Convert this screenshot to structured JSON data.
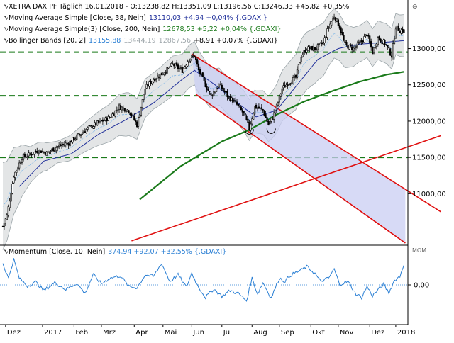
{
  "colors": {
    "price": "#000000",
    "ma38": "#1f2f9a",
    "ma200": "#1a7a1a",
    "bb": "#9aa4a8",
    "bb_fill": "#e3e5e6",
    "support": "#1a7a1a",
    "channel": "#e01010",
    "channel_fill": "#c9cdf3",
    "momentum": "#2a7fd4",
    "zero": "#2a7fd4",
    "grid": "#000000"
  },
  "header": {
    "line1": "XETRA DAX PF Täglich  16.01.2018 - O:13238,82  H:13351,09  L:13196,56  C:13246,33  +45,82  +0,35%",
    "ma38_prefix": "Moving Average Simple [Close, 38, Nein]",
    "ma38_values": "13110,03 +4,94 +0,04% {.GDAXI}",
    "ma200_prefix": "Moving Average Simple(3) [Close, 200, Nein]",
    "ma200_values": "12678,53 +5,22 +0,04% {.GDAXI}",
    "bb_prefix": "Bollinger Bands [20, 2]",
    "bb_v1": "13155,88",
    "bb_v2": "13444,19",
    "bb_v3": "12867,56",
    "bb_tail": "+8,91 +0,07% {.GDAXI}",
    "mom_prefix": "Momentum [Close, 10, Nein]",
    "mom_values": "374,94 +92,07 +32,55% {.GDAXI}",
    "mom_scale_label": "MOM"
  },
  "chart_data": [
    {
      "type": "candlestick",
      "title": "XETRA DAX PF Täglich",
      "ylim": [
        10300,
        13650
      ],
      "yticks": [
        11000,
        11500,
        12000,
        12500,
        13000
      ],
      "ytick_labels": [
        "11000,00",
        "11500,00",
        "12000,00",
        "12500,00",
        "13000,00"
      ],
      "x_labels": [
        "Dez",
        "2017",
        "Feb",
        "Mrz",
        "Apr",
        "Mai",
        "Jun",
        "Jul",
        "Aug",
        "Sep",
        "Okt",
        "Nov",
        "Dez",
        "2018"
      ],
      "x_label_index": [
        2,
        29,
        52,
        72,
        96,
        117,
        138,
        160,
        182,
        202,
        225,
        245,
        268,
        287
      ],
      "n_days": 300,
      "price_anchors": [
        [
          0,
          10550
        ],
        [
          3,
          10700
        ],
        [
          8,
          11250
        ],
        [
          14,
          11500
        ],
        [
          20,
          11540
        ],
        [
          26,
          11600
        ],
        [
          32,
          11560
        ],
        [
          40,
          11650
        ],
        [
          48,
          11700
        ],
        [
          55,
          11800
        ],
        [
          62,
          11900
        ],
        [
          70,
          11980
        ],
        [
          78,
          12050
        ],
        [
          85,
          12200
        ],
        [
          92,
          12150
        ],
        [
          98,
          11950
        ],
        [
          104,
          12450
        ],
        [
          110,
          12580
        ],
        [
          116,
          12650
        ],
        [
          124,
          12780
        ],
        [
          131,
          12700
        ],
        [
          136,
          12860
        ],
        [
          140,
          12900
        ],
        [
          143,
          12700
        ],
        [
          148,
          12500
        ],
        [
          152,
          12350
        ],
        [
          158,
          12500
        ],
        [
          164,
          12350
        ],
        [
          170,
          12250
        ],
        [
          176,
          12100
        ],
        [
          180,
          11900
        ],
        [
          184,
          12200
        ],
        [
          190,
          12150
        ],
        [
          194,
          11950
        ],
        [
          197,
          12050
        ],
        [
          200,
          12200
        ],
        [
          204,
          12450
        ],
        [
          210,
          12550
        ],
        [
          214,
          12600
        ],
        [
          218,
          12900
        ],
        [
          222,
          13000
        ],
        [
          228,
          13000
        ],
        [
          234,
          13080
        ],
        [
          238,
          13300
        ],
        [
          242,
          13450
        ],
        [
          246,
          13300
        ],
        [
          250,
          13050
        ],
        [
          256,
          13000
        ],
        [
          262,
          13100
        ],
        [
          266,
          13200
        ],
        [
          270,
          12950
        ],
        [
          274,
          13150
        ],
        [
          280,
          13050
        ],
        [
          284,
          12900
        ],
        [
          287,
          13300
        ],
        [
          290,
          13250
        ],
        [
          293,
          13246
        ]
      ],
      "ma38_anchors": [
        [
          12,
          11100
        ],
        [
          30,
          11450
        ],
        [
          50,
          11550
        ],
        [
          70,
          11820
        ],
        [
          90,
          12020
        ],
        [
          110,
          12250
        ],
        [
          130,
          12560
        ],
        [
          140,
          12700
        ],
        [
          155,
          12500
        ],
        [
          170,
          12270
        ],
        [
          185,
          12060
        ],
        [
          200,
          12150
        ],
        [
          215,
          12500
        ],
        [
          230,
          12850
        ],
        [
          245,
          13000
        ],
        [
          260,
          13060
        ],
        [
          275,
          13080
        ],
        [
          293,
          13110
        ]
      ],
      "ma200_anchors": [
        [
          100,
          10920
        ],
        [
          130,
          11380
        ],
        [
          160,
          11720
        ],
        [
          180,
          11880
        ],
        [
          200,
          12090
        ],
        [
          220,
          12270
        ],
        [
          240,
          12410
        ],
        [
          260,
          12540
        ],
        [
          280,
          12640
        ],
        [
          293,
          12680
        ]
      ],
      "bb_width_anchors": [
        [
          0,
          600
        ],
        [
          20,
          250
        ],
        [
          40,
          150
        ],
        [
          60,
          200
        ],
        [
          90,
          300
        ],
        [
          110,
          250
        ],
        [
          140,
          300
        ],
        [
          160,
          250
        ],
        [
          190,
          300
        ],
        [
          220,
          400
        ],
        [
          240,
          350
        ],
        [
          260,
          250
        ],
        [
          293,
          290
        ]
      ],
      "horizontal_support": [
        11500,
        12350,
        12950
      ],
      "channel": {
        "upper": [
          [
            138,
            12925
          ],
          [
            320,
            10750
          ]
        ],
        "lower": [
          [
            141,
            12370
          ],
          [
            294,
            10320
          ]
        ],
        "band_end_day": 294
      },
      "uptrend": [
        [
          94,
          10350
        ],
        [
          320,
          11800
        ]
      ],
      "circled_lows": [
        [
          180,
          11830
        ],
        [
          196,
          11840
        ]
      ]
    },
    {
      "type": "line",
      "title": "Momentum [Close, 10, Nein]",
      "ylim": [
        -700,
        700
      ],
      "yticks": [
        0
      ],
      "ytick_labels": [
        "0,00"
      ],
      "last_value": 374.94,
      "mom_anchors": [
        [
          0,
          380
        ],
        [
          4,
          120
        ],
        [
          8,
          450
        ],
        [
          12,
          120
        ],
        [
          18,
          -20
        ],
        [
          24,
          50
        ],
        [
          30,
          -100
        ],
        [
          38,
          40
        ],
        [
          46,
          -80
        ],
        [
          54,
          30
        ],
        [
          60,
          -150
        ],
        [
          66,
          180
        ],
        [
          72,
          20
        ],
        [
          78,
          120
        ],
        [
          86,
          160
        ],
        [
          92,
          -30
        ],
        [
          98,
          -50
        ],
        [
          104,
          180
        ],
        [
          110,
          150
        ],
        [
          116,
          380
        ],
        [
          122,
          60
        ],
        [
          128,
          180
        ],
        [
          134,
          -40
        ],
        [
          138,
          210
        ],
        [
          142,
          0
        ],
        [
          148,
          -220
        ],
        [
          154,
          -70
        ],
        [
          160,
          -200
        ],
        [
          166,
          -100
        ],
        [
          172,
          -150
        ],
        [
          178,
          -280
        ],
        [
          182,
          120
        ],
        [
          186,
          -160
        ],
        [
          190,
          40
        ],
        [
          196,
          -230
        ],
        [
          202,
          120
        ],
        [
          206,
          60
        ],
        [
          210,
          170
        ],
        [
          216,
          240
        ],
        [
          222,
          320
        ],
        [
          228,
          200
        ],
        [
          232,
          60
        ],
        [
          238,
          120
        ],
        [
          242,
          280
        ],
        [
          246,
          10
        ],
        [
          252,
          60
        ],
        [
          258,
          -160
        ],
        [
          262,
          -220
        ],
        [
          266,
          -30
        ],
        [
          270,
          -190
        ],
        [
          274,
          -90
        ],
        [
          278,
          10
        ],
        [
          282,
          -140
        ],
        [
          286,
          80
        ],
        [
          290,
          150
        ],
        [
          293,
          375
        ]
      ]
    }
  ]
}
